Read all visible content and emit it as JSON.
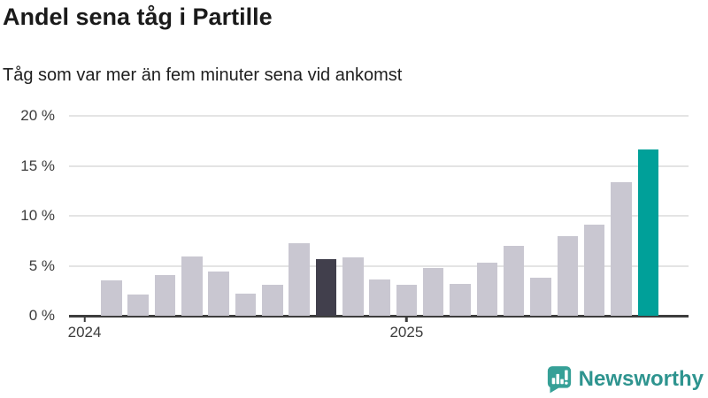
{
  "header": {
    "title": "Andel sena tåg i Partille",
    "subtitle": "Tåg som var mer än fem minuter sena vid ankomst"
  },
  "footer": {
    "brand": "Newsworthy"
  },
  "colors": {
    "bar_default": "#c9c7d1",
    "bar_highlight_dark": "#413f4c",
    "bar_highlight_teal": "#00a099",
    "grid": "#e4e4e4",
    "axis": "#3d3d3d",
    "brand_teal": "#2e948f",
    "text_dark": "#1a1a1a",
    "tick_text": "#3c3c3c"
  },
  "chart_data": {
    "type": "bar",
    "title": "Andel sena tåg i Partille",
    "subtitle": "Tåg som var mer än fem minuter sena vid ankomst",
    "unit": "%",
    "ylim": [
      0,
      20
    ],
    "grid": true,
    "legend": false,
    "yticks": [
      {
        "value": 20,
        "label": "20 %"
      },
      {
        "value": 15,
        "label": "15 %"
      },
      {
        "value": 10,
        "label": "10 %"
      },
      {
        "value": 5,
        "label": "5 %"
      },
      {
        "value": 0,
        "label": "0 %"
      }
    ],
    "xticks": [
      {
        "index": 0,
        "label": "2024"
      },
      {
        "index": 12,
        "label": "2025"
      }
    ],
    "categories": [
      "2024-01",
      "2024-02",
      "2024-03",
      "2024-04",
      "2024-05",
      "2024-06",
      "2024-07",
      "2024-08",
      "2024-09",
      "2024-10",
      "2024-11",
      "2024-12",
      "2025-01",
      "2025-02",
      "2025-03",
      "2025-04",
      "2025-05",
      "2025-06",
      "2025-07",
      "2025-08",
      "2025-09",
      "2025-10"
    ],
    "values": [
      null,
      3.5,
      2.1,
      4.1,
      5.9,
      4.4,
      2.2,
      3.1,
      7.3,
      5.7,
      5.8,
      3.6,
      3.1,
      4.8,
      3.2,
      5.3,
      7.0,
      3.8,
      8.0,
      9.1,
      13.4,
      16.6
    ],
    "highlights": [
      {
        "index": 9,
        "color": "#413f4c"
      },
      {
        "index": 21,
        "color": "#00a099"
      }
    ]
  }
}
